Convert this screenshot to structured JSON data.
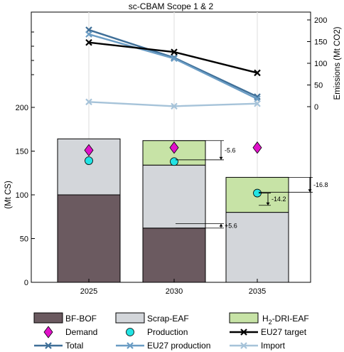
{
  "chart_data": {
    "title": "sc-CBAM Scope 1 & 2",
    "type": "bar",
    "categories": [
      "2025",
      "2030",
      "2035"
    ],
    "bar_panel": {
      "ylabel": "(Mt CS)",
      "ylim": [
        0,
        200
      ],
      "yticks": [
        0,
        50,
        100,
        150,
        200
      ],
      "stacks": [
        {
          "name": "BF-BOF",
          "color": "#6b5a60",
          "values": [
            100,
            62,
            0
          ]
        },
        {
          "name": "Scrap-EAF",
          "color": "#d3d6da",
          "values": [
            64,
            72,
            80
          ]
        },
        {
          "name": "H2-DRI-EAF",
          "color": "#c7e3a6",
          "values": [
            0,
            28,
            40
          ]
        }
      ],
      "markers": [
        {
          "name": "Demand",
          "shape": "diamond",
          "color": "#e011c9",
          "values": [
            151,
            154,
            154
          ]
        },
        {
          "name": "Production",
          "shape": "circle",
          "color": "#22e3e3",
          "values": [
            139,
            138,
            102
          ]
        }
      ],
      "annotations": [
        {
          "category": "2030",
          "text": "-5.6",
          "from": 162,
          "to": 140
        },
        {
          "category": "2030",
          "text": "+5.6",
          "from": 62,
          "to": 67
        },
        {
          "category": "2035",
          "text": "-14.2",
          "from": 102,
          "to": 88
        },
        {
          "category": "2035",
          "text": "-16.8",
          "from": 120,
          "to": 103
        }
      ]
    },
    "emissions_panel": {
      "ylabel": "Emissions (Mt CO2)",
      "ylim": [
        0,
        200
      ],
      "yticks": [
        0,
        50,
        100,
        150,
        200
      ],
      "series": [
        {
          "name": "Total",
          "color": "#3f6f98",
          "values": [
            177,
            113,
            23
          ]
        },
        {
          "name": "EU27 production",
          "color": "#6a9cc4",
          "values": [
            167,
            111,
            18
          ]
        },
        {
          "name": "EU27 target",
          "color": "#000000",
          "values": [
            148,
            126,
            78
          ]
        },
        {
          "name": "Import",
          "color": "#a6c3d9",
          "values": [
            11,
            1,
            7
          ]
        }
      ]
    },
    "legend": {
      "position": "bottom",
      "items": [
        {
          "label": "BF-BOF",
          "kind": "patch",
          "color": "#6b5a60"
        },
        {
          "label": "Scrap-EAF",
          "kind": "patch",
          "color": "#d3d6da"
        },
        {
          "label_main": "H",
          "label_sub": "2",
          "label_rest": "-DRI-EAF",
          "kind": "patch",
          "color": "#c7e3a6"
        },
        {
          "label": "Demand",
          "kind": "diamond",
          "color": "#e011c9"
        },
        {
          "label": "Production",
          "kind": "circle",
          "color": "#22e3e3"
        },
        {
          "label": "EU27 target",
          "kind": "line-x",
          "color": "#000000"
        },
        {
          "label": "Total",
          "kind": "line-x",
          "color": "#3f6f98"
        },
        {
          "label": "EU27 production",
          "kind": "line-x",
          "color": "#6a9cc4"
        },
        {
          "label": "Import",
          "kind": "line-x",
          "color": "#a6c3d9"
        }
      ]
    }
  }
}
